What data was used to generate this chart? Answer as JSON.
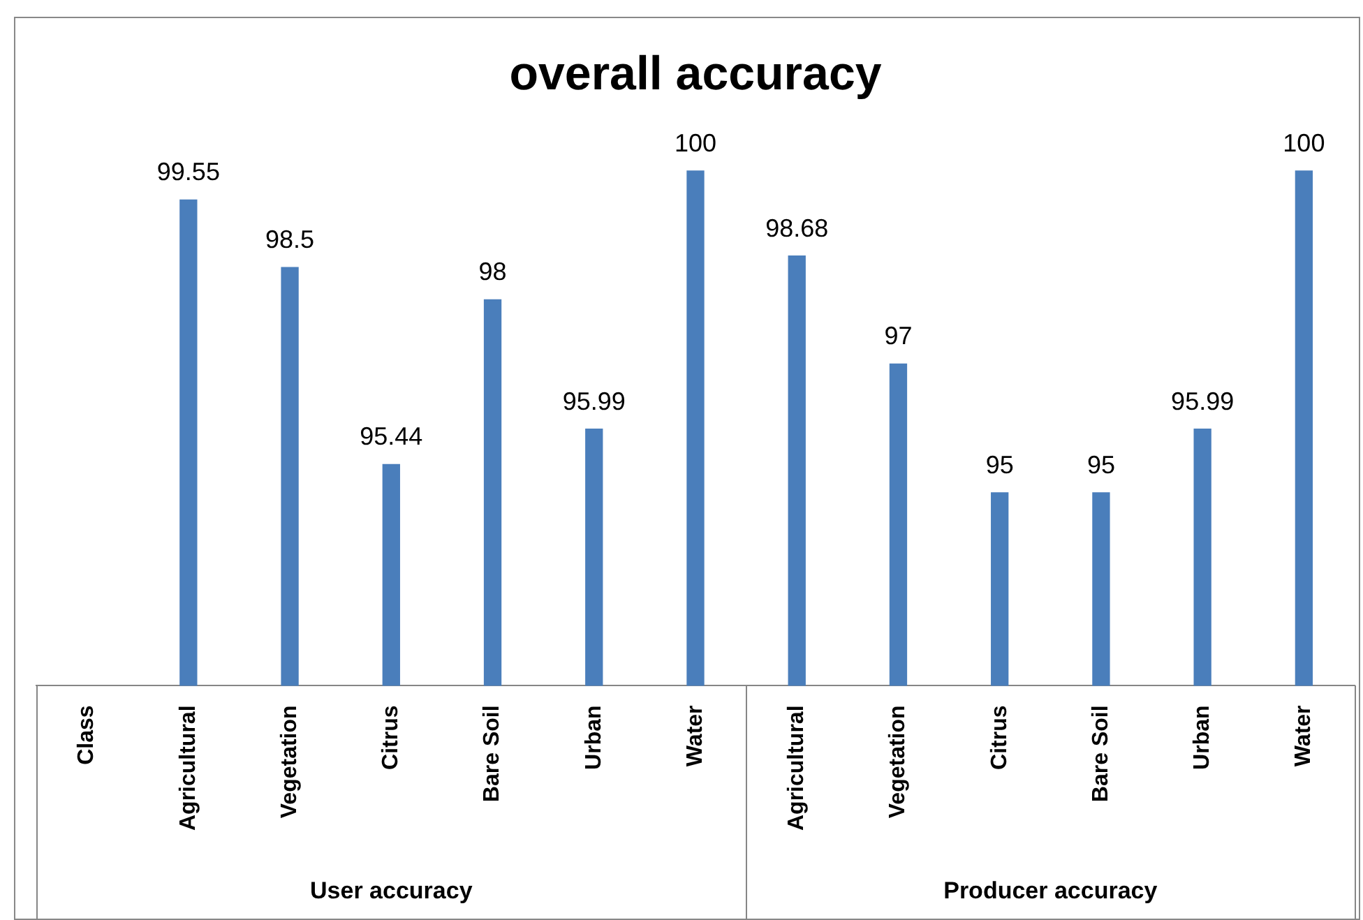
{
  "chart_data": {
    "type": "bar",
    "title": "overall accuracy",
    "categories": [
      "Class",
      "Agricultural",
      "Vegetation",
      "Citrus",
      "Bare Soil",
      "Urban",
      "Water",
      "Agricultural",
      "Vegetation",
      "Citrus",
      "Bare Soil",
      "Urban",
      "Water"
    ],
    "values": [
      null,
      99.55,
      98.5,
      95.44,
      98,
      95.99,
      100,
      98.68,
      97,
      95,
      95,
      95.99,
      100
    ],
    "color": "#4a7ebb",
    "data_labels": true,
    "grid": false,
    "legend": false,
    "annotations": [
      "User accuracy",
      "Producer accuracy"
    ]
  }
}
